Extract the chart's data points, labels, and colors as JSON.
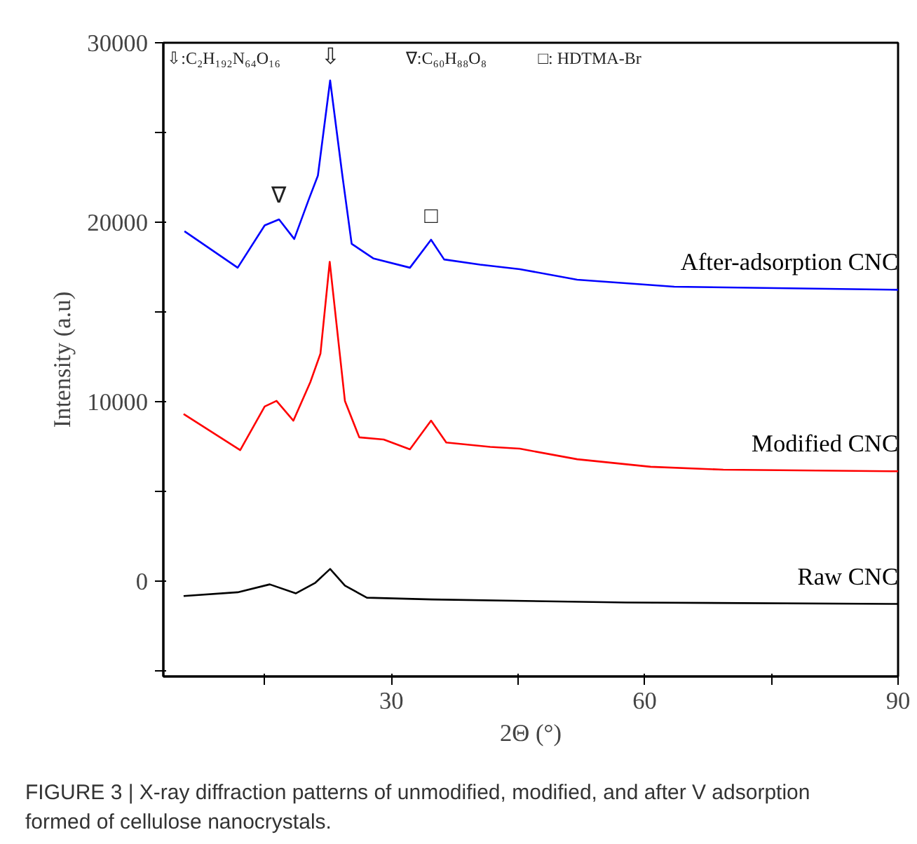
{
  "chart_data": {
    "type": "line",
    "xlabel": "2Θ (°)",
    "ylabel": "Intensity (a.u)",
    "xlim": [
      3,
      90
    ],
    "xticks": [
      {
        "value": 15,
        "label": null
      },
      30,
      {
        "value": 45,
        "label": null
      },
      60,
      {
        "value": 75,
        "label": null
      },
      90
    ],
    "ylim": [
      -5300,
      30000
    ],
    "yticks": [
      {
        "value": -5000,
        "label": null
      },
      0,
      {
        "value": 5000,
        "label": null
      },
      10000,
      {
        "value": 15000,
        "label": null
      },
      20000,
      {
        "value": 25000,
        "label": null
      },
      30000
    ],
    "grid": false,
    "legend": false,
    "marker": "none",
    "line_style": "solid",
    "series": [
      {
        "name": "After-adsorption CNC",
        "color": "#0000ff",
        "x": [
          5.5,
          11.8,
          15,
          16.7,
          18.5,
          20.2,
          21.3,
          22.75,
          24.2,
          25.3,
          27.9,
          32.2,
          34.7,
          36.25,
          40.5,
          45.2,
          52,
          63.5,
          90
        ],
        "values": [
          19500,
          17470,
          19830,
          20160,
          19070,
          21250,
          22600,
          27900,
          22600,
          18800,
          17980,
          17470,
          19030,
          17930,
          17640,
          17390,
          16800,
          16410,
          16240
        ]
      },
      {
        "name": "Modified CNC",
        "color": "#ff0000",
        "x": [
          5.4,
          12.1,
          15,
          16.4,
          18.4,
          20.4,
          21.6,
          22.7,
          24.5,
          26.2,
          29.1,
          32.2,
          34.7,
          36.5,
          41.7,
          45.2,
          52,
          60.7,
          69.3,
          90
        ],
        "values": [
          9320,
          7310,
          9740,
          10050,
          8950,
          11090,
          12680,
          17800,
          10050,
          8020,
          7900,
          7350,
          8950,
          7730,
          7490,
          7390,
          6800,
          6380,
          6220,
          6130
        ]
      },
      {
        "name": "Raw CNC",
        "color": "#000000",
        "x": [
          5.4,
          11.8,
          15.6,
          18.7,
          21,
          22.75,
          24.5,
          27.1,
          34.8,
          57.8,
          90
        ],
        "values": [
          -820,
          -610,
          -170,
          -670,
          -80,
          690,
          -240,
          -910,
          -1010,
          -1180,
          -1260
        ]
      }
    ],
    "annotations": [
      "⇩:C₂H₁₉₂N₆₄O₁₆",
      "∇:C₆₀H₈₈O₈",
      "□: HDTMA-Br",
      {
        "text": "⇩",
        "x": 22.75,
        "y": 27900
      },
      {
        "text": "∇",
        "x": 16.7,
        "y": 20160
      },
      {
        "text": "□",
        "x": 34.7,
        "y": 19030
      },
      "FIGURE 3 | X-ray diffraction patterns of unmodified, modified, and after V adsorption formed of cellulose nanocrystals."
    ]
  }
}
